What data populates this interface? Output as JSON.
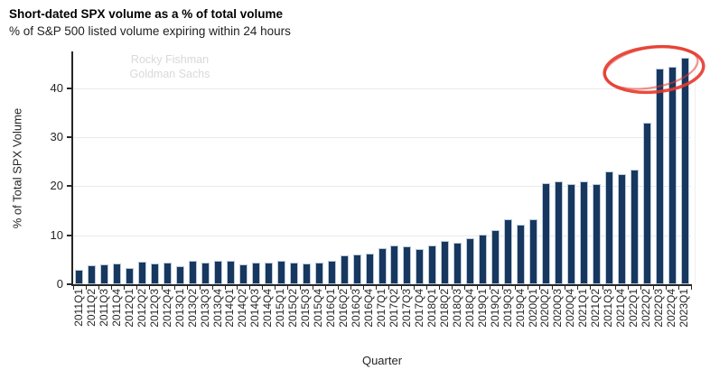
{
  "header": {
    "title": "Short-dated SPX volume as a % of total volume",
    "subtitle": "% of S&P 500 listed volume expiring within 24 hours"
  },
  "watermark": {
    "line1": "Rocky Fishman",
    "line2": "Goldman Sachs"
  },
  "chart_data": {
    "type": "bar",
    "title": "Short-dated SPX volume as a % of total volume",
    "subtitle": "% of S&P 500 listed volume expiring within 24 hours",
    "xlabel": "Quarter",
    "ylabel": "% of Total SPX Volume",
    "ylim": [
      0,
      47.5
    ],
    "yticks": [
      0,
      10,
      20,
      30,
      40
    ],
    "grid": true,
    "legend": "none",
    "colors": {
      "bar": "#17375e",
      "bar_edge": "#b9cadd",
      "grid": "#e9e9e9",
      "axis": "#262626",
      "watermark": "#d9d9d9",
      "annotation": "#e6382c"
    },
    "annotation": {
      "shape": "ellipse",
      "meaning": "red hand-drawn circle around the 2022Q3-2023Q1 spike"
    },
    "categories": [
      "2011Q1",
      "2011Q2",
      "2011Q3",
      "2011Q4",
      "2012Q1",
      "2012Q2",
      "2012Q3",
      "2012Q4",
      "2013Q1",
      "2013Q2",
      "2013Q3",
      "2013Q4",
      "2014Q1",
      "2014Q2",
      "2014Q3",
      "2014Q4",
      "2015Q1",
      "2015Q2",
      "2015Q3",
      "2015Q4",
      "2016Q1",
      "2016Q2",
      "2016Q3",
      "2016Q4",
      "2017Q1",
      "2017Q2",
      "2017Q3",
      "2017Q4",
      "2018Q1",
      "2018Q2",
      "2018Q3",
      "2018Q4",
      "2019Q1",
      "2019Q2",
      "2019Q3",
      "2019Q4",
      "2020Q1",
      "2020Q2",
      "2020Q3",
      "2020Q4",
      "2021Q1",
      "2021Q2",
      "2021Q3",
      "2021Q4",
      "2022Q1",
      "2022Q2",
      "2022Q3",
      "2022Q4",
      "2023Q1"
    ],
    "values": [
      2.9,
      3.9,
      4.0,
      4.3,
      3.3,
      4.6,
      4.2,
      4.4,
      3.6,
      4.8,
      4.5,
      4.7,
      4.8,
      4.1,
      4.4,
      4.5,
      4.7,
      4.5,
      4.3,
      4.5,
      4.7,
      5.8,
      6.0,
      6.3,
      7.3,
      7.9,
      7.7,
      7.2,
      8.0,
      8.8,
      8.4,
      9.4,
      10.2,
      11.1,
      13.3,
      12.2,
      13.3,
      20.7,
      21.0,
      20.5,
      21.0,
      20.5,
      23.0,
      22.4,
      23.4,
      33.0,
      44.0,
      44.4,
      46.2
    ]
  }
}
